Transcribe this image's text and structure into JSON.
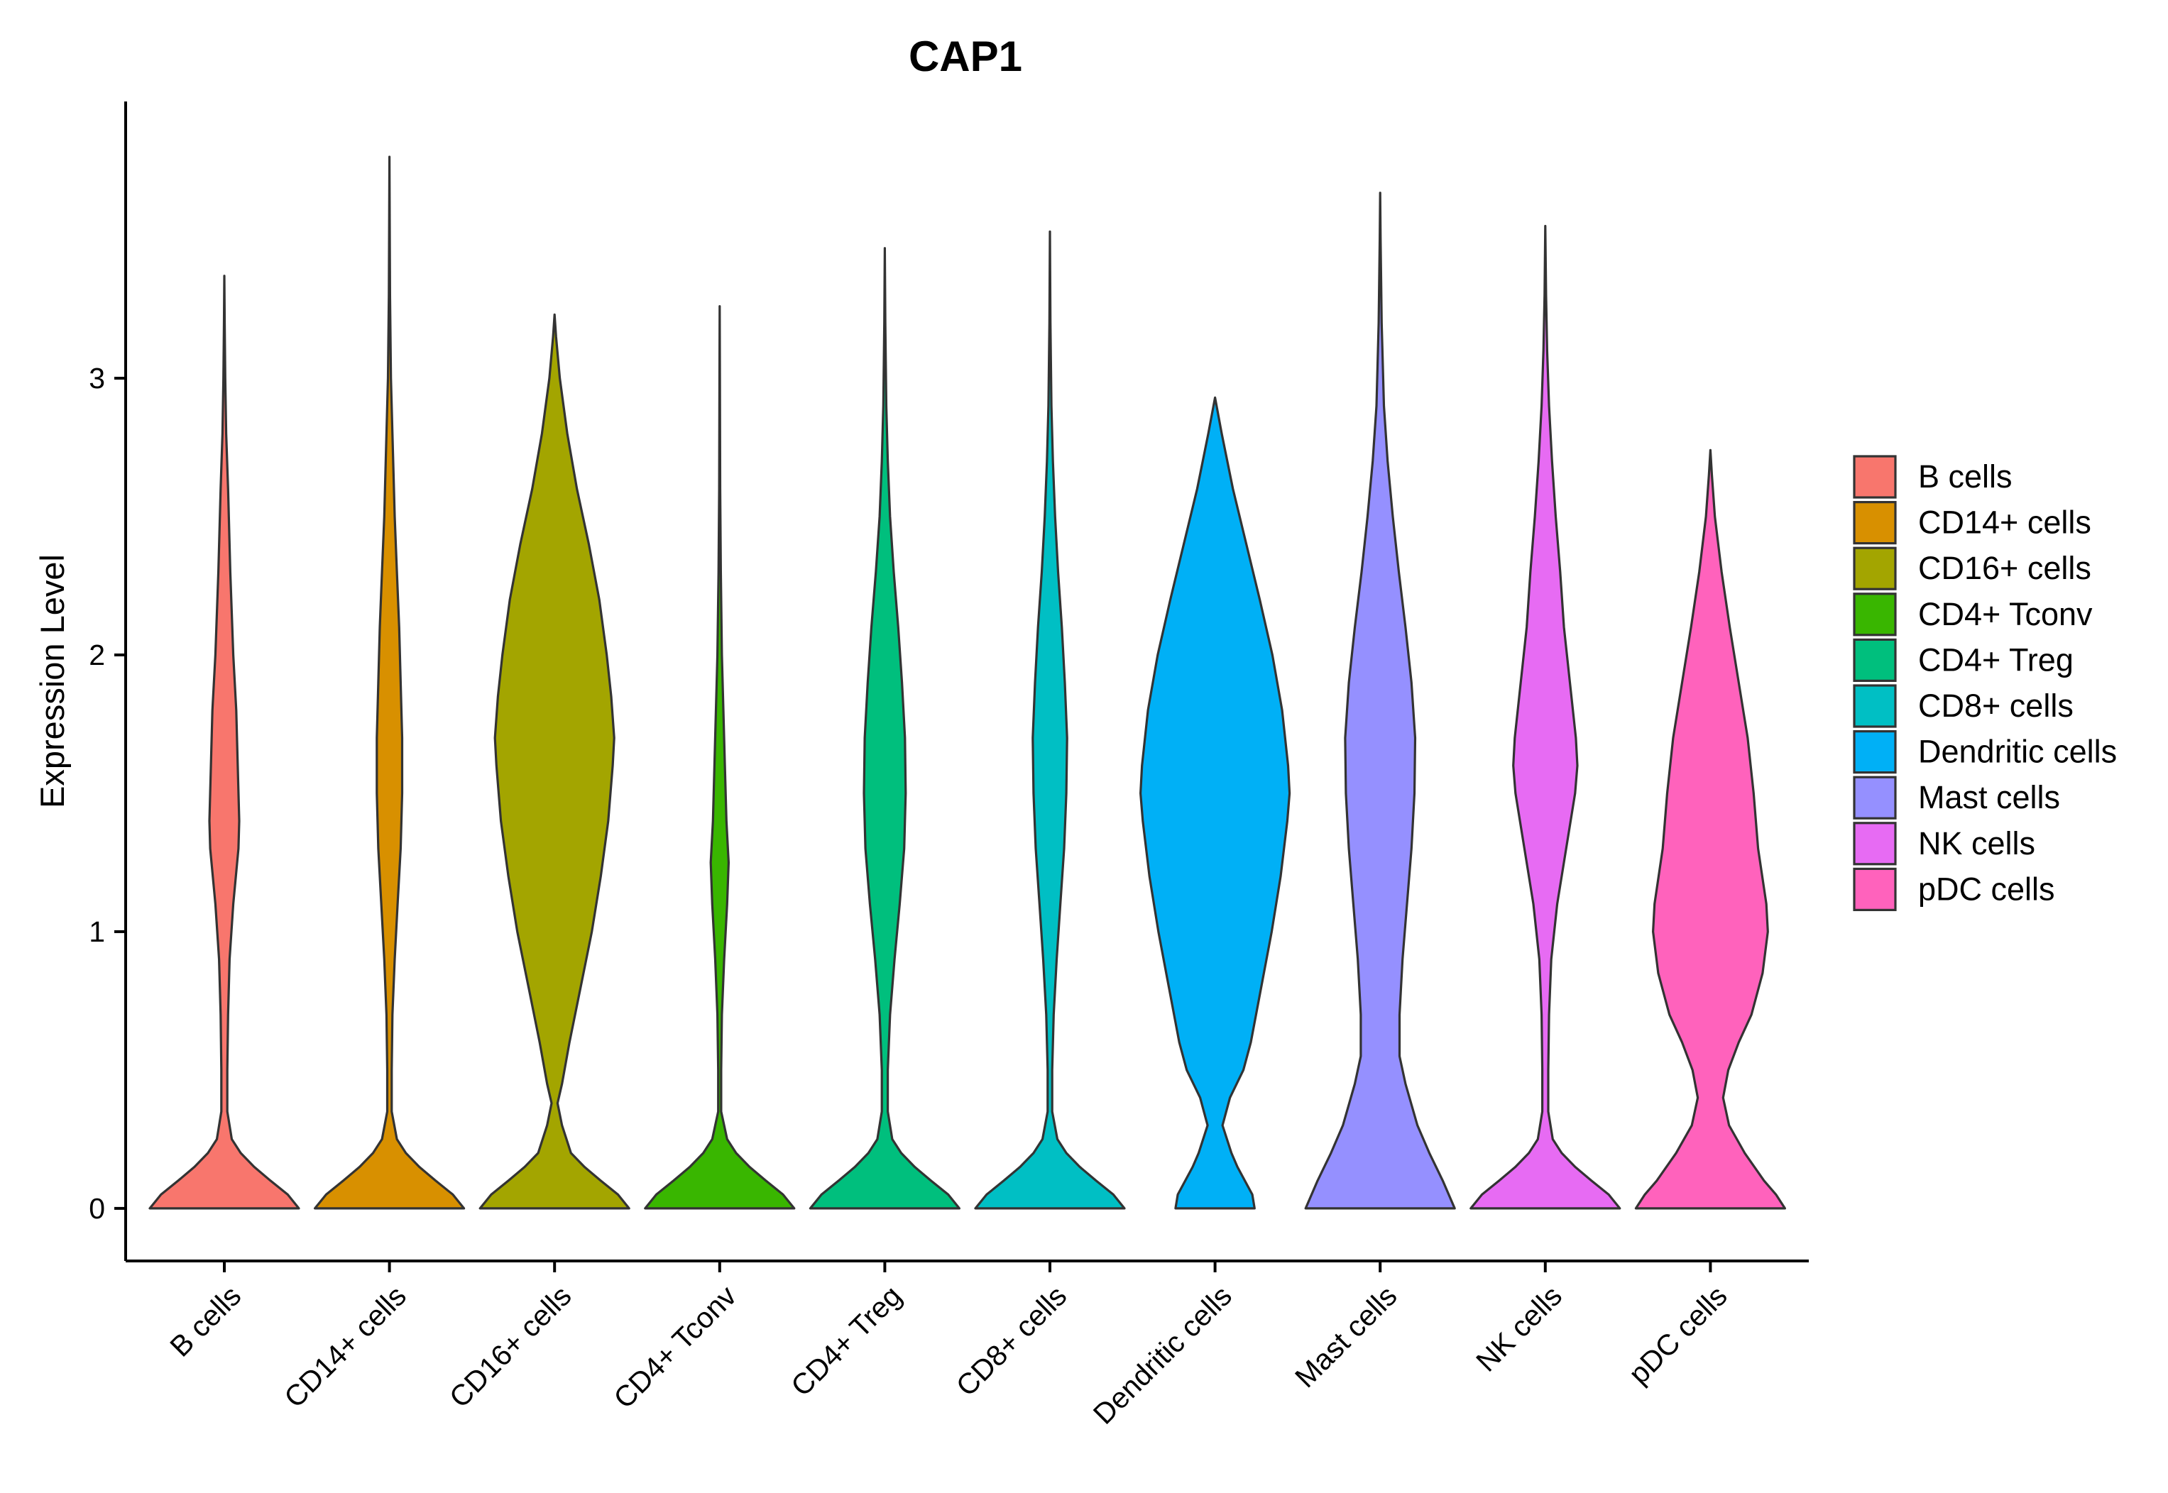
{
  "chart_data": {
    "type": "violin",
    "title": "CAP1",
    "xlabel": "",
    "ylabel": "Expression Level",
    "ylim": [
      -0.19,
      4.0
    ],
    "yticks": [
      0,
      1,
      2,
      3
    ],
    "grid": false,
    "legend_position": "right",
    "categories": [
      "B cells",
      "CD14+ cells",
      "CD16+ cells",
      "CD4+ Tconv",
      "CD4+ Treg",
      "CD8+ cells",
      "Dendritic cells",
      "Mast cells",
      "NK cells",
      "pDC cells"
    ],
    "colors": [
      "#F8766D",
      "#D89000",
      "#A3A500",
      "#39B600",
      "#00BF7D",
      "#00BFC4",
      "#00B0F6",
      "#9590FF",
      "#E76BF3",
      "#FF62BC"
    ],
    "violins": [
      {
        "name": "B cells",
        "max": 3.37,
        "profile": [
          [
            0,
            1.0
          ],
          [
            0.05,
            0.85
          ],
          [
            0.1,
            0.62
          ],
          [
            0.15,
            0.4
          ],
          [
            0.2,
            0.22
          ],
          [
            0.25,
            0.1
          ],
          [
            0.35,
            0.04
          ],
          [
            0.5,
            0.04
          ],
          [
            0.7,
            0.05
          ],
          [
            0.9,
            0.07
          ],
          [
            1.1,
            0.12
          ],
          [
            1.3,
            0.19
          ],
          [
            1.4,
            0.2
          ],
          [
            1.6,
            0.18
          ],
          [
            1.8,
            0.16
          ],
          [
            2.0,
            0.12
          ],
          [
            2.3,
            0.08
          ],
          [
            2.6,
            0.05
          ],
          [
            2.8,
            0.025
          ],
          [
            3.0,
            0.012
          ],
          [
            3.2,
            0.005
          ],
          [
            3.37,
            0
          ]
        ]
      },
      {
        "name": "CD14+ cells",
        "max": 3.8,
        "profile": [
          [
            0,
            1.0
          ],
          [
            0.05,
            0.85
          ],
          [
            0.1,
            0.62
          ],
          [
            0.15,
            0.4
          ],
          [
            0.2,
            0.22
          ],
          [
            0.25,
            0.1
          ],
          [
            0.35,
            0.03
          ],
          [
            0.5,
            0.03
          ],
          [
            0.7,
            0.04
          ],
          [
            0.9,
            0.07
          ],
          [
            1.1,
            0.11
          ],
          [
            1.3,
            0.15
          ],
          [
            1.5,
            0.17
          ],
          [
            1.7,
            0.17
          ],
          [
            1.9,
            0.15
          ],
          [
            2.1,
            0.13
          ],
          [
            2.3,
            0.1
          ],
          [
            2.5,
            0.07
          ],
          [
            2.8,
            0.04
          ],
          [
            3.0,
            0.02
          ],
          [
            3.3,
            0.008
          ],
          [
            3.6,
            0.003
          ],
          [
            3.8,
            0
          ]
        ]
      },
      {
        "name": "CD16+ cells",
        "max": 3.23,
        "profile": [
          [
            0,
            1.0
          ],
          [
            0.05,
            0.85
          ],
          [
            0.1,
            0.62
          ],
          [
            0.15,
            0.4
          ],
          [
            0.2,
            0.22
          ],
          [
            0.3,
            0.1
          ],
          [
            0.38,
            0.04
          ],
          [
            0.45,
            0.1
          ],
          [
            0.6,
            0.2
          ],
          [
            0.8,
            0.35
          ],
          [
            1.0,
            0.5
          ],
          [
            1.2,
            0.62
          ],
          [
            1.4,
            0.72
          ],
          [
            1.6,
            0.78
          ],
          [
            1.7,
            0.8
          ],
          [
            1.85,
            0.76
          ],
          [
            2.0,
            0.7
          ],
          [
            2.2,
            0.6
          ],
          [
            2.4,
            0.46
          ],
          [
            2.6,
            0.3
          ],
          [
            2.8,
            0.17
          ],
          [
            3.0,
            0.07
          ],
          [
            3.15,
            0.02
          ],
          [
            3.23,
            0
          ]
        ]
      },
      {
        "name": "CD4+ Tconv",
        "max": 3.26,
        "profile": [
          [
            0,
            1.0
          ],
          [
            0.05,
            0.85
          ],
          [
            0.1,
            0.62
          ],
          [
            0.15,
            0.4
          ],
          [
            0.2,
            0.22
          ],
          [
            0.25,
            0.1
          ],
          [
            0.35,
            0.02
          ],
          [
            0.5,
            0.02
          ],
          [
            0.7,
            0.03
          ],
          [
            0.9,
            0.06
          ],
          [
            1.1,
            0.1
          ],
          [
            1.25,
            0.12
          ],
          [
            1.4,
            0.09
          ],
          [
            1.6,
            0.07
          ],
          [
            1.8,
            0.05
          ],
          [
            2.0,
            0.03
          ],
          [
            2.3,
            0.015
          ],
          [
            2.6,
            0.007
          ],
          [
            3.0,
            0.003
          ],
          [
            3.26,
            0
          ]
        ]
      },
      {
        "name": "CD4+ Treg",
        "max": 3.47,
        "profile": [
          [
            0,
            1.0
          ],
          [
            0.05,
            0.85
          ],
          [
            0.1,
            0.62
          ],
          [
            0.15,
            0.4
          ],
          [
            0.2,
            0.22
          ],
          [
            0.25,
            0.1
          ],
          [
            0.35,
            0.04
          ],
          [
            0.5,
            0.04
          ],
          [
            0.7,
            0.07
          ],
          [
            0.9,
            0.13
          ],
          [
            1.1,
            0.2
          ],
          [
            1.3,
            0.26
          ],
          [
            1.5,
            0.28
          ],
          [
            1.7,
            0.27
          ],
          [
            1.9,
            0.23
          ],
          [
            2.1,
            0.18
          ],
          [
            2.3,
            0.12
          ],
          [
            2.5,
            0.07
          ],
          [
            2.7,
            0.04
          ],
          [
            2.9,
            0.02
          ],
          [
            3.2,
            0.007
          ],
          [
            3.47,
            0
          ]
        ]
      },
      {
        "name": "CD8+ cells",
        "max": 3.53,
        "profile": [
          [
            0,
            1.0
          ],
          [
            0.05,
            0.85
          ],
          [
            0.1,
            0.62
          ],
          [
            0.15,
            0.4
          ],
          [
            0.2,
            0.22
          ],
          [
            0.25,
            0.1
          ],
          [
            0.35,
            0.03
          ],
          [
            0.5,
            0.03
          ],
          [
            0.7,
            0.05
          ],
          [
            0.9,
            0.09
          ],
          [
            1.1,
            0.14
          ],
          [
            1.3,
            0.19
          ],
          [
            1.5,
            0.22
          ],
          [
            1.7,
            0.23
          ],
          [
            1.9,
            0.2
          ],
          [
            2.1,
            0.16
          ],
          [
            2.3,
            0.11
          ],
          [
            2.5,
            0.07
          ],
          [
            2.7,
            0.04
          ],
          [
            2.9,
            0.02
          ],
          [
            3.2,
            0.007
          ],
          [
            3.53,
            0
          ]
        ]
      },
      {
        "name": "Dendritic cells",
        "max": 2.93,
        "profile": [
          [
            0,
            0.53
          ],
          [
            0.05,
            0.5
          ],
          [
            0.1,
            0.4
          ],
          [
            0.15,
            0.3
          ],
          [
            0.2,
            0.22
          ],
          [
            0.3,
            0.1
          ],
          [
            0.4,
            0.2
          ],
          [
            0.5,
            0.38
          ],
          [
            0.6,
            0.48
          ],
          [
            0.8,
            0.62
          ],
          [
            1.0,
            0.76
          ],
          [
            1.2,
            0.88
          ],
          [
            1.4,
            0.97
          ],
          [
            1.5,
            1.0
          ],
          [
            1.6,
            0.98
          ],
          [
            1.8,
            0.9
          ],
          [
            2.0,
            0.77
          ],
          [
            2.2,
            0.6
          ],
          [
            2.4,
            0.42
          ],
          [
            2.6,
            0.24
          ],
          [
            2.8,
            0.09
          ],
          [
            2.93,
            0
          ]
        ]
      },
      {
        "name": "Mast cells",
        "max": 3.67,
        "profile": [
          [
            0,
            1.0
          ],
          [
            0.1,
            0.84
          ],
          [
            0.2,
            0.66
          ],
          [
            0.3,
            0.5
          ],
          [
            0.45,
            0.34
          ],
          [
            0.55,
            0.26
          ],
          [
            0.7,
            0.26
          ],
          [
            0.9,
            0.3
          ],
          [
            1.1,
            0.36
          ],
          [
            1.3,
            0.42
          ],
          [
            1.5,
            0.46
          ],
          [
            1.7,
            0.47
          ],
          [
            1.9,
            0.42
          ],
          [
            2.1,
            0.34
          ],
          [
            2.3,
            0.25
          ],
          [
            2.5,
            0.17
          ],
          [
            2.7,
            0.1
          ],
          [
            2.9,
            0.05
          ],
          [
            3.2,
            0.02
          ],
          [
            3.5,
            0.006
          ],
          [
            3.67,
            0
          ]
        ]
      },
      {
        "name": "NK cells",
        "max": 3.55,
        "profile": [
          [
            0,
            1.0
          ],
          [
            0.05,
            0.85
          ],
          [
            0.1,
            0.62
          ],
          [
            0.15,
            0.4
          ],
          [
            0.2,
            0.22
          ],
          [
            0.25,
            0.1
          ],
          [
            0.35,
            0.04
          ],
          [
            0.5,
            0.04
          ],
          [
            0.7,
            0.05
          ],
          [
            0.9,
            0.08
          ],
          [
            1.1,
            0.16
          ],
          [
            1.3,
            0.28
          ],
          [
            1.5,
            0.4
          ],
          [
            1.6,
            0.43
          ],
          [
            1.7,
            0.41
          ],
          [
            1.9,
            0.33
          ],
          [
            2.1,
            0.25
          ],
          [
            2.3,
            0.2
          ],
          [
            2.5,
            0.14
          ],
          [
            2.7,
            0.09
          ],
          [
            2.9,
            0.05
          ],
          [
            3.1,
            0.025
          ],
          [
            3.3,
            0.01
          ],
          [
            3.55,
            0
          ]
        ]
      },
      {
        "name": "pDC cells",
        "max": 2.74,
        "profile": [
          [
            0,
            1.0
          ],
          [
            0.05,
            0.88
          ],
          [
            0.1,
            0.72
          ],
          [
            0.2,
            0.46
          ],
          [
            0.3,
            0.25
          ],
          [
            0.4,
            0.17
          ],
          [
            0.5,
            0.24
          ],
          [
            0.6,
            0.38
          ],
          [
            0.7,
            0.55
          ],
          [
            0.85,
            0.7
          ],
          [
            1.0,
            0.77
          ],
          [
            1.1,
            0.75
          ],
          [
            1.3,
            0.64
          ],
          [
            1.5,
            0.58
          ],
          [
            1.7,
            0.5
          ],
          [
            1.9,
            0.38
          ],
          [
            2.1,
            0.26
          ],
          [
            2.3,
            0.15
          ],
          [
            2.5,
            0.06
          ],
          [
            2.65,
            0.02
          ],
          [
            2.74,
            0
          ]
        ]
      }
    ]
  }
}
